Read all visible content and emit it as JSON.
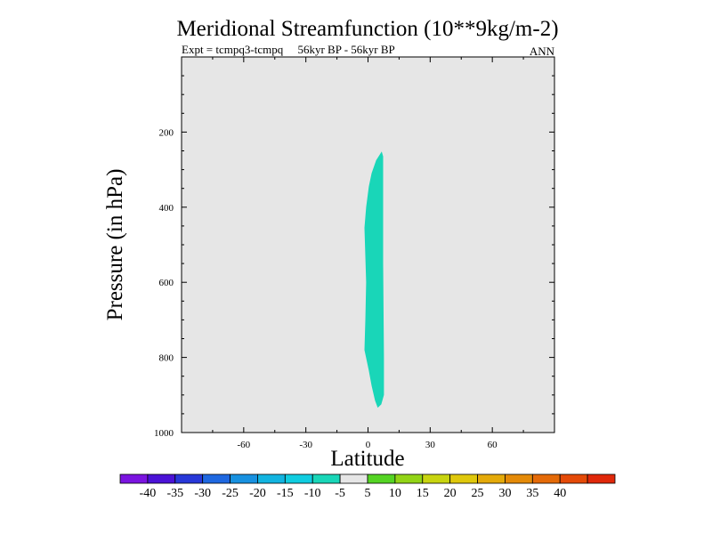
{
  "chart_data": {
    "type": "contour",
    "title": "Meridional Streamfunction (10**9kg/m-2)",
    "subtitle_left": "Expt = tcmpq3-tcmpq     56kyr BP - 56kyr BP",
    "subtitle_right": "ANN",
    "xlabel": "Latitude",
    "ylabel": "Pressure (in hPa)",
    "xlim": [
      -90,
      90
    ],
    "ylim": [
      0,
      1000
    ],
    "y_inverted": true,
    "background_color": "#e6e6e6",
    "x_ticks": [
      {
        "value": -60,
        "label": "-60"
      },
      {
        "value": -30,
        "label": "-30"
      },
      {
        "value": 0,
        "label": "0"
      },
      {
        "value": 30,
        "label": "30"
      },
      {
        "value": 60,
        "label": "60"
      }
    ],
    "y_ticks": [
      {
        "value": 200,
        "label": "200"
      },
      {
        "value": 400,
        "label": "400"
      },
      {
        "value": 600,
        "label": "600"
      },
      {
        "value": 800,
        "label": "800"
      },
      {
        "value": 1000,
        "label": "1000"
      }
    ],
    "contour_region": {
      "level_range": [
        -10,
        -5
      ],
      "color": "#19d6b8",
      "outline": [
        {
          "lat": 6.6,
          "p": 252
        },
        {
          "lat": 7.3,
          "p": 265
        },
        {
          "lat": 7.3,
          "p": 550
        },
        {
          "lat": 7.7,
          "p": 800
        },
        {
          "lat": 7.7,
          "p": 900
        },
        {
          "lat": 6.4,
          "p": 925
        },
        {
          "lat": 4.7,
          "p": 934
        },
        {
          "lat": 3.4,
          "p": 915
        },
        {
          "lat": 1.7,
          "p": 875
        },
        {
          "lat": 0.4,
          "p": 835
        },
        {
          "lat": -1.7,
          "p": 780
        },
        {
          "lat": -1.3,
          "p": 700
        },
        {
          "lat": -0.9,
          "p": 600
        },
        {
          "lat": -1.7,
          "p": 455
        },
        {
          "lat": -0.9,
          "p": 400
        },
        {
          "lat": 0.4,
          "p": 345
        },
        {
          "lat": 1.7,
          "p": 310
        },
        {
          "lat": 3.9,
          "p": 275
        }
      ]
    },
    "colorbar": {
      "colors": [
        "#7b14e0",
        "#4b12d6",
        "#2838d8",
        "#1f68e0",
        "#1891e0",
        "#12b4e0",
        "#10cde0",
        "#19d6b8",
        "#e6e6e6",
        "#55d424",
        "#92d416",
        "#c8d410",
        "#dfc80c",
        "#e4aa0a",
        "#e48a08",
        "#e46a08",
        "#e44a08",
        "#e0280a"
      ],
      "labels": [
        "-40",
        "-35",
        "-30",
        "-25",
        "-20",
        "-15",
        "-10",
        "-5",
        "5",
        "10",
        "15",
        "20",
        "25",
        "30",
        "35",
        "40"
      ]
    }
  }
}
